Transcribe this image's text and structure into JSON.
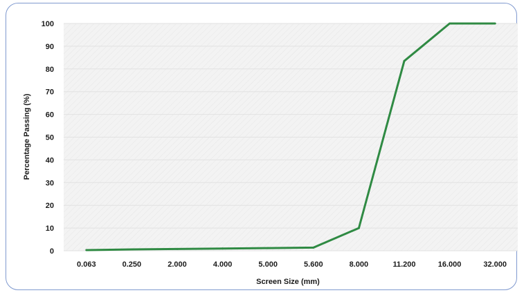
{
  "chart_data": {
    "type": "line",
    "title": "",
    "xlabel": "Screen Size (mm)",
    "ylabel": "Percentage Passing (%)",
    "categories": [
      "0.063",
      "0.250",
      "2.000",
      "4.000",
      "5.000",
      "5.600",
      "8.000",
      "11.200",
      "16.000",
      "32.000"
    ],
    "series": [
      {
        "name": "",
        "color": "#2f8a43",
        "values": [
          0.3,
          0.6,
          0.8,
          1.0,
          1.2,
          1.4,
          10,
          83.5,
          100,
          100
        ]
      }
    ],
    "ylim": [
      0,
      100
    ],
    "yticks": [
      "0",
      "10",
      "20",
      "30",
      "40",
      "50",
      "60",
      "70",
      "80",
      "90",
      "100"
    ],
    "grid": true,
    "legend": "none"
  }
}
